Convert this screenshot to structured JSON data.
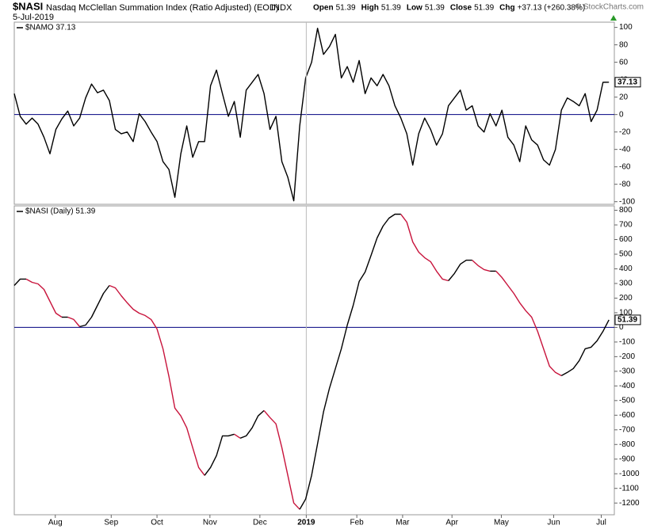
{
  "header": {
    "symbol": "$NASI",
    "description": "Nasdaq McClellan Summation Index (Ratio Adjusted) (EOD)",
    "exchange": "INDX",
    "date": "5-Jul-2019",
    "quote": [
      {
        "label": "Open",
        "value": "51.39"
      },
      {
        "label": "High",
        "value": "51.39"
      },
      {
        "label": "Low",
        "value": "51.39"
      },
      {
        "label": "Close",
        "value": "51.39"
      },
      {
        "label": "Chg",
        "value": "+37.13 (+260.38%)"
      }
    ],
    "copyright": "© StockCharts.com"
  },
  "chart_data": [
    {
      "type": "line",
      "xlim": [
        0,
        100.9
      ],
      "ylim": [
        -103,
        106
      ],
      "yticks": [
        100,
        80,
        60,
        40,
        20,
        0,
        -20,
        -40,
        -60,
        -80,
        -100
      ],
      "zero_line": true,
      "series": [
        {
          "name": "$NAMO 37.13",
          "color": "#000000",
          "values": [
            24,
            -2,
            -11,
            -4,
            -11,
            -26,
            -45,
            -17,
            -5,
            4,
            -13,
            -4,
            19,
            35,
            25,
            28,
            16,
            -17,
            -22,
            -20,
            -31,
            1,
            -8,
            -20,
            -31,
            -54,
            -63,
            -95,
            -45,
            -13,
            -49,
            -31,
            -31,
            33,
            51,
            24,
            -2,
            15,
            -26,
            28,
            37,
            46,
            24,
            -17,
            -2,
            -54,
            -72,
            -99,
            -13,
            42,
            60,
            99,
            69,
            78,
            92,
            42,
            55,
            37,
            62,
            24,
            42,
            33,
            46,
            33,
            10,
            -4,
            -22,
            -58,
            -22,
            -4,
            -17,
            -35,
            -22,
            10,
            19,
            28,
            5,
            10,
            -13,
            -20,
            1,
            -13,
            5,
            -26,
            -35,
            -54,
            -13,
            -29,
            -35,
            -52,
            -58,
            -40,
            5,
            19,
            15,
            10,
            24,
            -8,
            5,
            37,
            37.13
          ]
        }
      ]
    },
    {
      "type": "line",
      "xlim": [
        0,
        100.9
      ],
      "ylim": [
        -1280,
        830
      ],
      "yticks": [
        800,
        700,
        600,
        500,
        400,
        300,
        200,
        100,
        0,
        -100,
        -200,
        -300,
        -400,
        -500,
        -600,
        -700,
        -800,
        -900,
        -1000,
        -1100,
        -1200
      ],
      "zero_line": true,
      "xticks": [
        {
          "value": 6.9,
          "label": "Aug"
        },
        {
          "value": 16.3,
          "label": "Sep"
        },
        {
          "value": 24,
          "label": "Oct"
        },
        {
          "value": 32.9,
          "label": "Nov"
        },
        {
          "value": 41.3,
          "label": "Dec"
        },
        {
          "value": 49.1,
          "label": "2019"
        },
        {
          "value": 57.6,
          "label": "Feb"
        },
        {
          "value": 65.3,
          "label": "Mar"
        },
        {
          "value": 73.6,
          "label": "Apr"
        },
        {
          "value": 81.9,
          "label": "May"
        },
        {
          "value": 90.7,
          "label": "Jun"
        },
        {
          "value": 98.7,
          "label": "Jul"
        }
      ],
      "series": [
        {
          "name": "$NASI (Daily) 51.39",
          "up_color": "#000000",
          "down_color": "#c8143c",
          "values": [
            286,
            330,
            330,
            308,
            297,
            259,
            178,
            97,
            70,
            70,
            54,
            5,
            16,
            70,
            151,
            232,
            286,
            270,
            216,
            168,
            124,
            97,
            81,
            54,
            -11,
            -146,
            -335,
            -551,
            -605,
            -686,
            -822,
            -957,
            -1011,
            -957,
            -876,
            -741,
            -741,
            -730,
            -757,
            -741,
            -686,
            -605,
            -568,
            -616,
            -659,
            -822,
            -1011,
            -1200,
            -1243,
            -1173,
            -1011,
            -795,
            -578,
            -416,
            -281,
            -146,
            16,
            151,
            314,
            378,
            492,
            611,
            692,
            746,
            773,
            773,
            719,
            584,
            514,
            476,
            449,
            384,
            330,
            319,
            368,
            432,
            459,
            459,
            422,
            395,
            384,
            384,
            341,
            286,
            232,
            168,
            114,
            70,
            -27,
            -146,
            -265,
            -308,
            -330,
            -308,
            -281,
            -227,
            -146,
            -135,
            -92,
            -27,
            51.39
          ]
        }
      ]
    }
  ]
}
